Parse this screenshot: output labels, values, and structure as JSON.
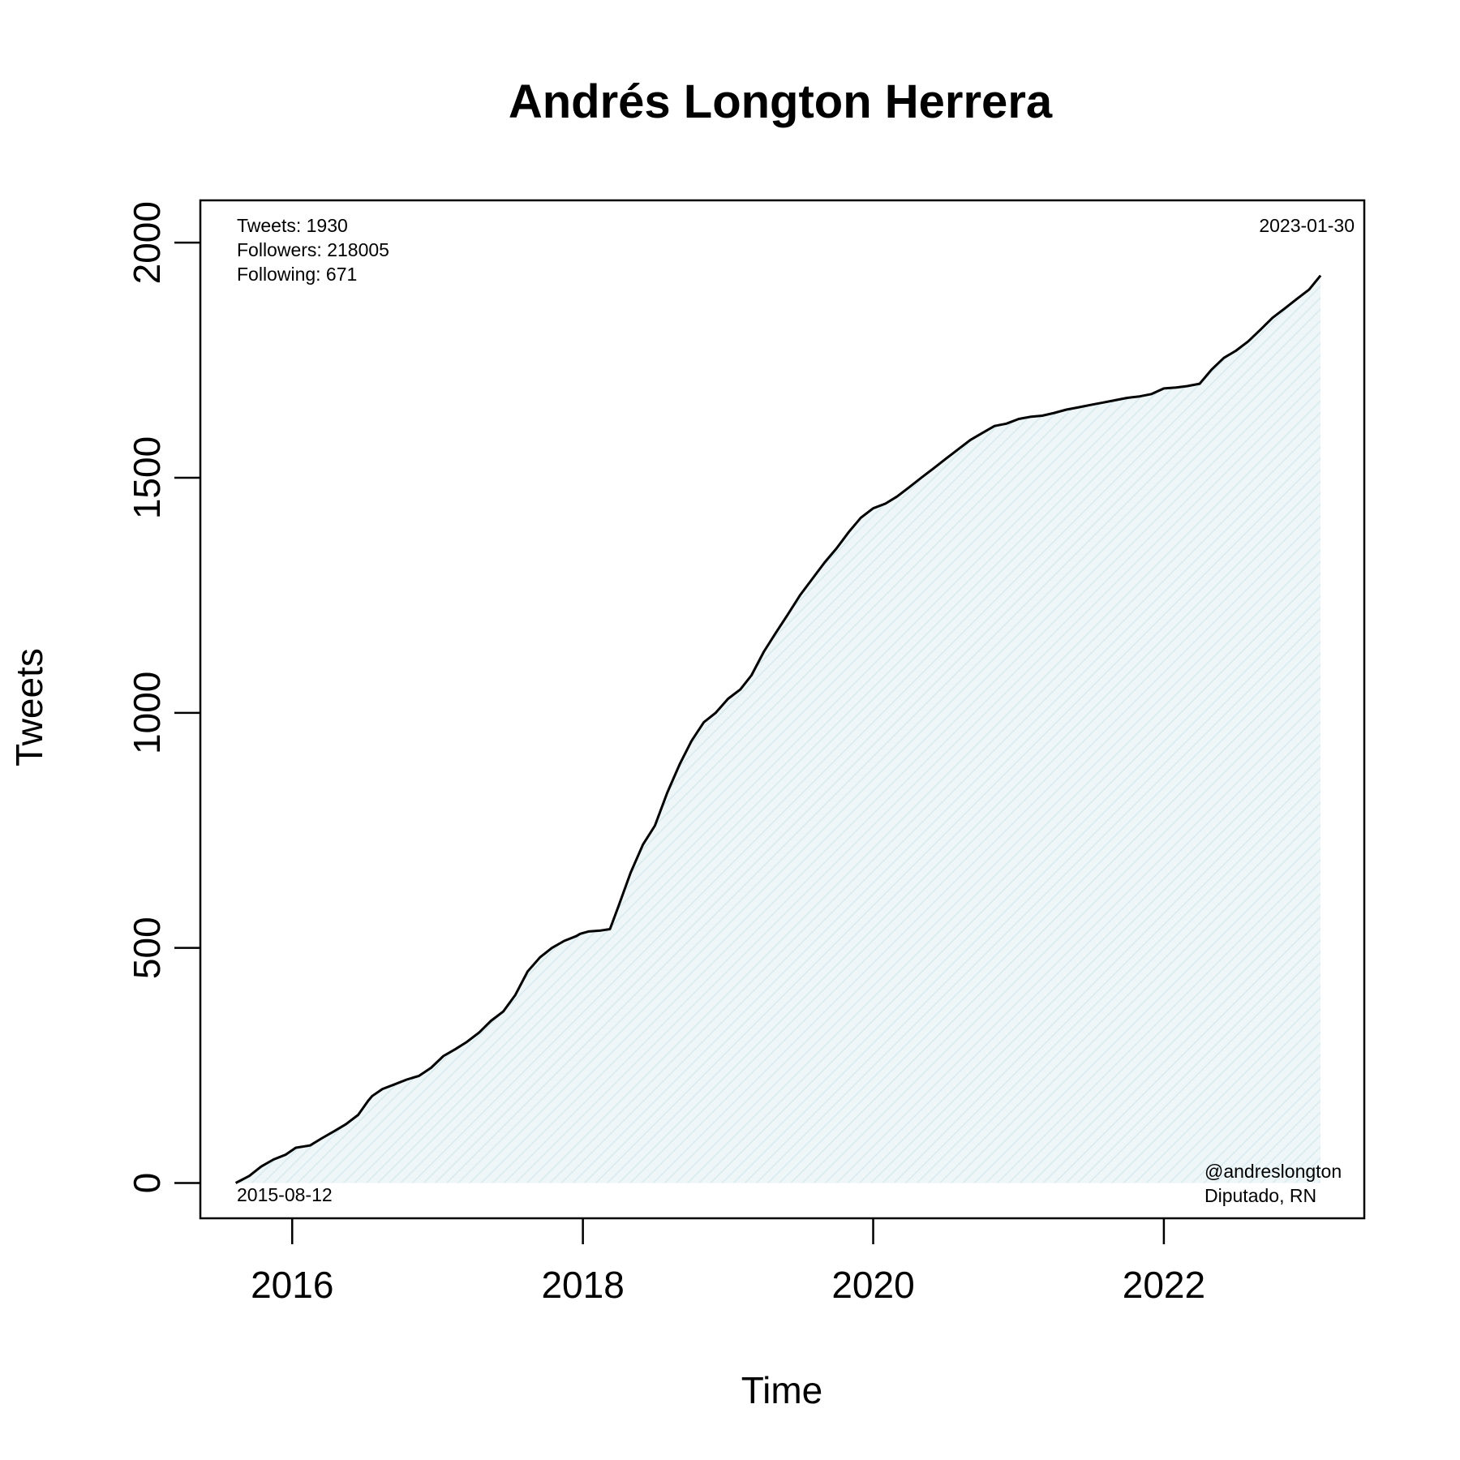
{
  "chart_data": {
    "type": "area",
    "title": "Andrés Longton Herrera",
    "xlabel": "Time",
    "ylabel": "Tweets",
    "x_ticks": [
      "2016",
      "2018",
      "2020",
      "2022"
    ],
    "y_ticks": [
      "0",
      "500",
      "1000",
      "1500",
      "2000"
    ],
    "xlim": [
      "2015-05-15",
      "2023-05-20"
    ],
    "ylim": [
      -75,
      2090
    ],
    "grid": false,
    "fill_color": "#e6f2f5",
    "line_color": "#000000",
    "start_label": "2015-08-12",
    "end_label": "2023-01-30",
    "stats": {
      "tweets": "Tweets: 1930",
      "followers": "Followers: 218005",
      "following": "Following: 671"
    },
    "handle": "@andreslongton",
    "role": "Diputado, RN",
    "series": [
      {
        "x": [
          "2015-08-12",
          "2015-09-15",
          "2015-10-15",
          "2015-11-15",
          "2015-12-15",
          "2016-01-10",
          "2016-02-15",
          "2016-03-15",
          "2016-04-15",
          "2016-05-15",
          "2016-06-15",
          "2016-07-10",
          "2016-07-20",
          "2016-08-15",
          "2016-09-15",
          "2016-10-15",
          "2016-11-15",
          "2016-12-15",
          "2017-01-15",
          "2017-02-15",
          "2017-03-15",
          "2017-04-15",
          "2017-05-15",
          "2017-06-15",
          "2017-07-15",
          "2017-08-15",
          "2017-09-15",
          "2017-10-15",
          "2017-11-15",
          "2017-12-15",
          "2017-12-25",
          "2018-01-15",
          "2018-02-15",
          "2018-03-10",
          "2018-04-01",
          "2018-05-01",
          "2018-06-01",
          "2018-07-01",
          "2018-08-01",
          "2018-09-01",
          "2018-10-01",
          "2018-11-01",
          "2018-12-01",
          "2019-01-01",
          "2019-02-01",
          "2019-03-01",
          "2019-04-01",
          "2019-05-01",
          "2019-06-01",
          "2019-07-01",
          "2019-08-01",
          "2019-09-01",
          "2019-10-01",
          "2019-11-01",
          "2019-12-01",
          "2020-01-01",
          "2020-02-01",
          "2020-03-01",
          "2020-04-01",
          "2020-05-01",
          "2020-06-01",
          "2020-07-01",
          "2020-08-01",
          "2020-09-01",
          "2020-10-01",
          "2020-11-01",
          "2020-12-01",
          "2021-01-01",
          "2021-02-01",
          "2021-03-01",
          "2021-04-01",
          "2021-05-01",
          "2021-06-01",
          "2021-07-01",
          "2021-08-01",
          "2021-09-01",
          "2021-10-01",
          "2021-11-01",
          "2021-12-01",
          "2022-01-01",
          "2022-02-01",
          "2022-03-01",
          "2022-04-01",
          "2022-05-01",
          "2022-06-01",
          "2022-07-01",
          "2022-08-01",
          "2022-09-01",
          "2022-10-01",
          "2022-11-01",
          "2022-12-01",
          "2023-01-01",
          "2023-01-30"
        ],
        "y": [
          0,
          15,
          35,
          50,
          60,
          75,
          80,
          95,
          110,
          125,
          145,
          175,
          185,
          200,
          210,
          220,
          228,
          245,
          270,
          285,
          300,
          320,
          345,
          365,
          400,
          450,
          480,
          500,
          515,
          525,
          530,
          535,
          537,
          540,
          590,
          660,
          720,
          760,
          830,
          890,
          940,
          980,
          1000,
          1030,
          1050,
          1080,
          1130,
          1170,
          1210,
          1250,
          1285,
          1320,
          1350,
          1385,
          1415,
          1435,
          1445,
          1460,
          1480,
          1500,
          1520,
          1540,
          1560,
          1580,
          1595,
          1610,
          1615,
          1625,
          1630,
          1632,
          1638,
          1645,
          1650,
          1655,
          1660,
          1665,
          1670,
          1673,
          1678,
          1690,
          1692,
          1695,
          1700,
          1730,
          1755,
          1770,
          1790,
          1815,
          1840,
          1860,
          1880,
          1900,
          1930
        ]
      }
    ]
  }
}
